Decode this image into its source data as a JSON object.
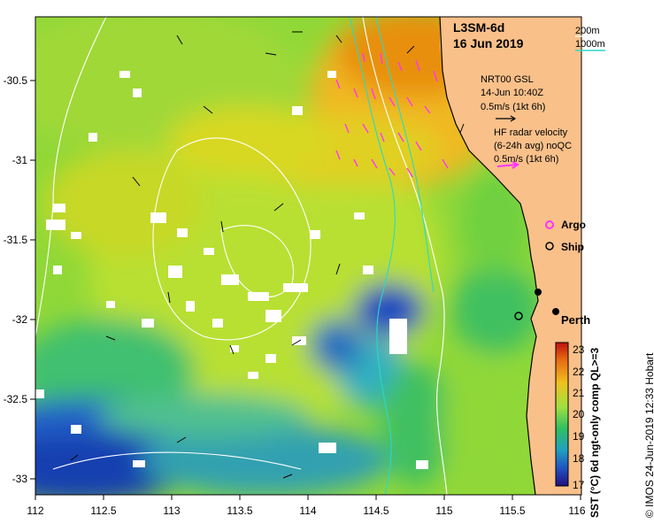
{
  "title": {
    "product": "L3SM-6d",
    "date": "16 Jun 2019"
  },
  "depth_legend": {
    "line1": "200m",
    "line2": "1000m",
    "line1_color": "#ffffff",
    "line2_color": "#2ad9c8"
  },
  "gsl_legend": {
    "source": "NRT00 GSL",
    "time": "14-Jun 10:40Z",
    "scale": "0.5m/s (1kt 6h)"
  },
  "hf_legend": {
    "line1": "HF radar velocity",
    "line2": "(6-24h avg) noQC",
    "scale": "0.5m/s (1kt 6h)",
    "color": "#ff33ff"
  },
  "markers": {
    "argo": "Argo",
    "ship": "Ship",
    "city": "Perth"
  },
  "colorbar": {
    "ticks": [
      "23",
      "22",
      "21",
      "20",
      "19",
      "18",
      "17"
    ],
    "label": "SST (°C) 6d ngt-only comp QL>=3"
  },
  "axes": {
    "x_ticks": [
      "112",
      "112.5",
      "113",
      "113.5",
      "114",
      "114.5",
      "115",
      "115.5",
      "116"
    ],
    "y_ticks": [
      "-30.5",
      "-31",
      "-31.5",
      "-32",
      "-32.5",
      "-33"
    ]
  },
  "credit": "© IMOS 24-Jun-2019 12:33 Hobart",
  "colors": {
    "land": "#f9c08a",
    "ocean_warm": "#e89a10",
    "ocean_cool": "#1a4fc0"
  }
}
